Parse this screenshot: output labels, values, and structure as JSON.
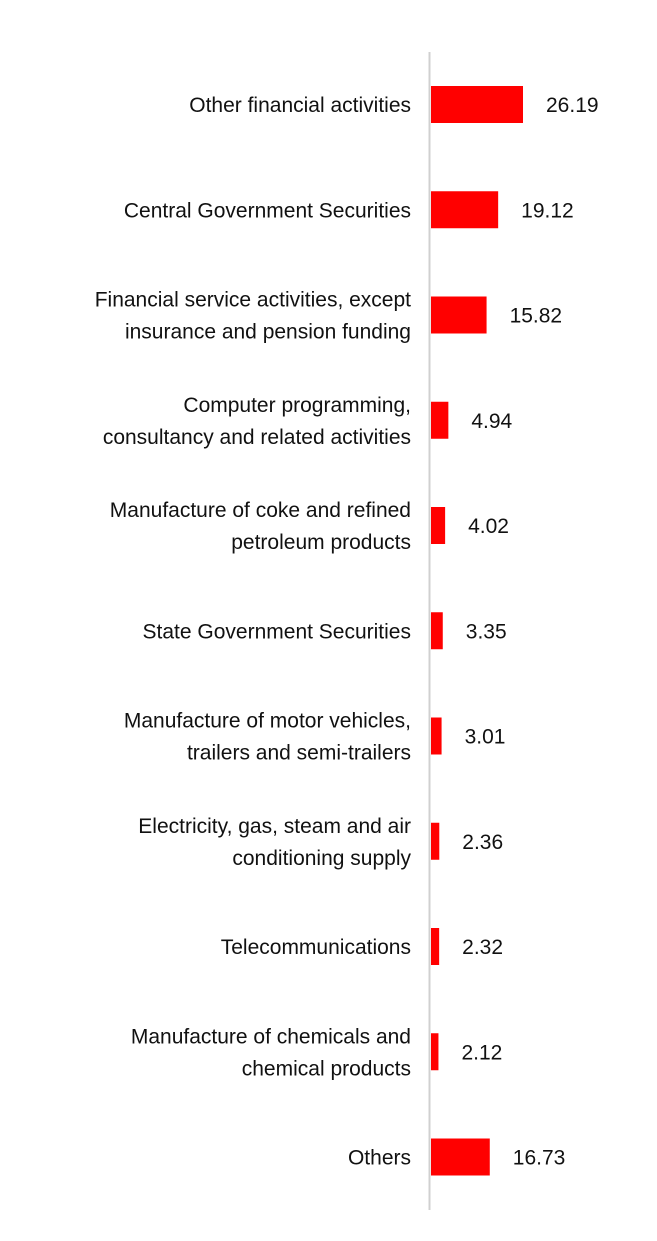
{
  "chart_data": {
    "type": "bar",
    "orientation": "horizontal",
    "title": "",
    "xlabel": "",
    "ylabel": "",
    "grid": false,
    "legend": "none",
    "bar_color": "#ff0000",
    "axis_color": "#d0d0d0",
    "xlim": [
      0,
      60
    ],
    "categories": [
      [
        "Other financial activities"
      ],
      [
        "Central Government Securities"
      ],
      [
        "Financial service activities, except",
        "insurance and pension funding"
      ],
      [
        "Computer programming,",
        "consultancy and related activities"
      ],
      [
        "Manufacture of coke and refined",
        "petroleum products"
      ],
      [
        "State Government Securities"
      ],
      [
        "Manufacture of motor vehicles,",
        "trailers and semi-trailers"
      ],
      [
        "Electricity, gas, steam and air",
        "conditioning supply"
      ],
      [
        "Telecommunications"
      ],
      [
        "Manufacture of chemicals and",
        "chemical products"
      ],
      [
        "Others"
      ]
    ],
    "values": [
      26.19,
      19.12,
      15.82,
      4.94,
      4.02,
      3.35,
      3.01,
      2.36,
      2.32,
      2.12,
      16.73
    ],
    "value_labels": [
      "26.19",
      "19.12",
      "15.82",
      "4.94",
      "4.02",
      "3.35",
      "3.01",
      "2.36",
      "2.32",
      "2.12",
      "16.73"
    ]
  }
}
